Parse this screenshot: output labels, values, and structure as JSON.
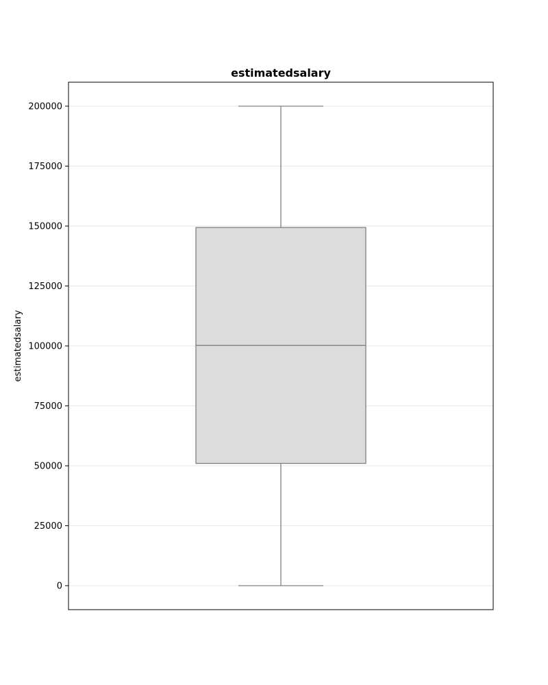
{
  "chart_data": {
    "type": "box",
    "title": "estimatedsalary",
    "xlabel": "",
    "ylabel": "estimatedsalary",
    "ylim": [
      -10000,
      210000
    ],
    "yticks": [
      0,
      25000,
      50000,
      75000,
      100000,
      125000,
      150000,
      175000,
      200000
    ],
    "grid": "horizontal",
    "series": [
      {
        "whisker_low": 0,
        "q1": 51000,
        "median": 100200,
        "q3": 149400,
        "whisker_high": 199990
      }
    ],
    "colors": {
      "box_fill": "#dcdcdc",
      "box_line": "#808080",
      "grid": "#e6e6e6",
      "frame": "#000000"
    }
  }
}
